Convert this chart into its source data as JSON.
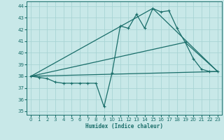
{
  "xlabel": "Humidex (Indice chaleur)",
  "xlim": [
    -0.5,
    23.5
  ],
  "ylim": [
    34.7,
    44.4
  ],
  "yticks": [
    35,
    36,
    37,
    38,
    39,
    40,
    41,
    42,
    43,
    44
  ],
  "xticks": [
    0,
    1,
    2,
    3,
    4,
    5,
    6,
    7,
    8,
    9,
    10,
    11,
    12,
    13,
    14,
    15,
    16,
    17,
    18,
    19,
    20,
    21,
    22,
    23
  ],
  "bg_color": "#c8e8e8",
  "line_color": "#1a6e6a",
  "grid_color": "#a8d4d4",
  "line1_x": [
    0,
    1,
    2,
    3,
    4,
    5,
    6,
    7,
    8,
    9,
    10,
    11,
    12,
    13,
    14,
    15,
    16,
    17,
    18,
    19,
    20,
    21,
    22,
    23
  ],
  "line1_y": [
    38.0,
    37.9,
    37.8,
    37.5,
    37.4,
    37.4,
    37.4,
    37.4,
    37.4,
    35.4,
    38.3,
    42.3,
    42.1,
    43.3,
    42.1,
    43.8,
    43.5,
    43.6,
    42.1,
    40.9,
    39.5,
    38.6,
    38.4,
    38.4
  ],
  "line2_x": [
    0,
    15,
    23
  ],
  "line2_y": [
    38.0,
    43.8,
    38.4
  ],
  "line3_x": [
    0,
    19,
    23
  ],
  "line3_y": [
    38.0,
    40.9,
    38.4
  ],
  "line4_x": [
    0,
    23
  ],
  "line4_y": [
    38.0,
    38.4
  ]
}
